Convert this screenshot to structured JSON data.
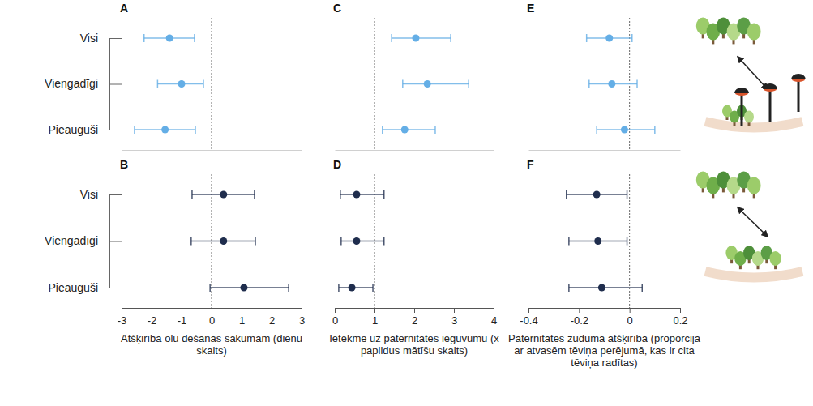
{
  "chart_data": [
    {
      "type": "forest",
      "title": "A",
      "categories": [
        "Visi",
        "Viengadīgi",
        "Pieauguši"
      ],
      "values": [
        -1.4,
        -1.0,
        -1.55
      ],
      "lower": [
        -2.25,
        -1.8,
        -2.57
      ],
      "upper": [
        -0.57,
        -0.27,
        -0.54
      ],
      "color": "#64aee6",
      "xlim": [
        -3,
        3
      ],
      "ref_line": 0,
      "tick_labels": "y"
    },
    {
      "type": "forest",
      "title": "B",
      "categories": [
        "Visi",
        "Viengadīgi",
        "Pieauguši"
      ],
      "values": [
        0.4,
        0.4,
        1.08
      ],
      "lower": [
        -0.65,
        -0.68,
        -0.05
      ],
      "upper": [
        1.43,
        1.46,
        2.57
      ],
      "color": "#1f2d4d",
      "xlim": [
        -3,
        3
      ],
      "xticks": [
        -3,
        -2,
        -1,
        0,
        1,
        2,
        3
      ],
      "ref_line": 0,
      "x_label": "Atšķirība olu dēšanas sākumam (dienu skaits)",
      "tick_labels": true
    },
    {
      "type": "forest",
      "title": "C",
      "categories": [
        "Visi",
        "Viengadīgi",
        "Pieauguši"
      ],
      "values": [
        2.04,
        2.33,
        1.76
      ],
      "lower": [
        1.43,
        1.71,
        1.2
      ],
      "upper": [
        2.92,
        3.37,
        2.53
      ],
      "color": "#64aee6",
      "xlim": [
        0,
        4
      ],
      "ref_line": 1,
      "tick_labels": false
    },
    {
      "type": "forest",
      "title": "D",
      "categories": [
        "Visi",
        "Viengadīgi",
        "Pieauguši"
      ],
      "values": [
        0.55,
        0.55,
        0.43
      ],
      "lower": [
        0.14,
        0.16,
        0.1
      ],
      "upper": [
        1.24,
        1.24,
        0.96
      ],
      "color": "#1f2d4d",
      "xlim": [
        0,
        4
      ],
      "xticks": [
        0,
        1,
        2,
        3,
        4
      ],
      "ref_line": 1,
      "x_label": "Ietekme uz paternitātes ieguvumu (x papildus mātīšu skaits)",
      "tick_labels": "x"
    },
    {
      "type": "forest",
      "title": "E",
      "categories": [
        "Visi",
        "Viengadīgi",
        "Pieauguši"
      ],
      "values": [
        -0.08,
        -0.07,
        -0.02
      ],
      "lower": [
        -0.17,
        -0.16,
        -0.13
      ],
      "upper": [
        0.01,
        0.03,
        0.1
      ],
      "color": "#64aee6",
      "xlim": [
        -0.4,
        0.2
      ],
      "ref_line": 0,
      "tick_labels": false
    },
    {
      "type": "forest",
      "title": "F",
      "categories": [
        "Visi",
        "Viengadīgi",
        "Pieauguši"
      ],
      "values": [
        -0.13,
        -0.125,
        -0.11
      ],
      "lower": [
        -0.25,
        -0.24,
        -0.24
      ],
      "upper": [
        -0.01,
        -0.01,
        0.05
      ],
      "color": "#1f2d4d",
      "xlim": [
        -0.4,
        0.2
      ],
      "xticks": [
        -0.4,
        -0.2,
        0,
        0.2
      ],
      "ref_line": 0,
      "x_label": "Paternitātes zuduma atšķirība (proporcija ar atvasēm tēviņa perējumā, kas ir cita tēviņa radītas)",
      "tick_labels": "x"
    }
  ]
}
